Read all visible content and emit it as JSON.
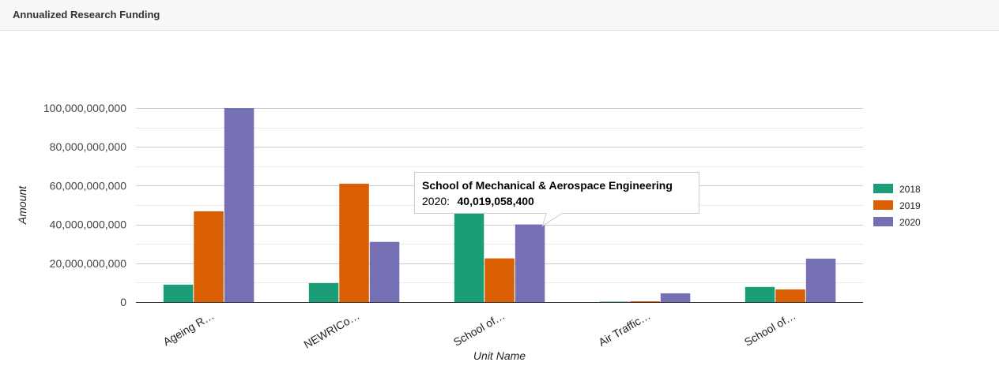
{
  "panel": {
    "title": "Annualized Research Funding"
  },
  "chart_data": {
    "type": "bar",
    "categories": [
      "Ageing R…",
      "NEWRICo…",
      "School of…",
      "Air Traffic…",
      "School of…"
    ],
    "series": [
      {
        "name": "2018",
        "color": "#1b9e77",
        "values": [
          9000000000,
          9800000000,
          46000000000,
          200000000,
          7800000000
        ]
      },
      {
        "name": "2019",
        "color": "#d95f02",
        "values": [
          46800000000,
          61000000000,
          22500000000,
          400000000,
          6500000000
        ]
      },
      {
        "name": "2020",
        "color": "#7570b3",
        "values": [
          100000000000,
          31000000000,
          40019058400,
          4500000000,
          22400000000
        ]
      }
    ],
    "ylim": [
      0,
      100000000000
    ],
    "yticks": [
      "0",
      "20,000,000,000",
      "40,000,000,000",
      "60,000,000,000",
      "80,000,000,000",
      "100,000,000,000"
    ],
    "ytick_values": [
      0,
      20000000000,
      40000000000,
      60000000000,
      80000000000,
      100000000000
    ],
    "xlabel": "Unit Name",
    "ylabel": "Amount",
    "grid": true,
    "legend_position": "right",
    "tooltip": {
      "title": "School of Mechanical & Aerospace Engineering",
      "label": "2020:",
      "value": "40,019,058,400",
      "category_index": 2,
      "series_index": 2
    }
  }
}
